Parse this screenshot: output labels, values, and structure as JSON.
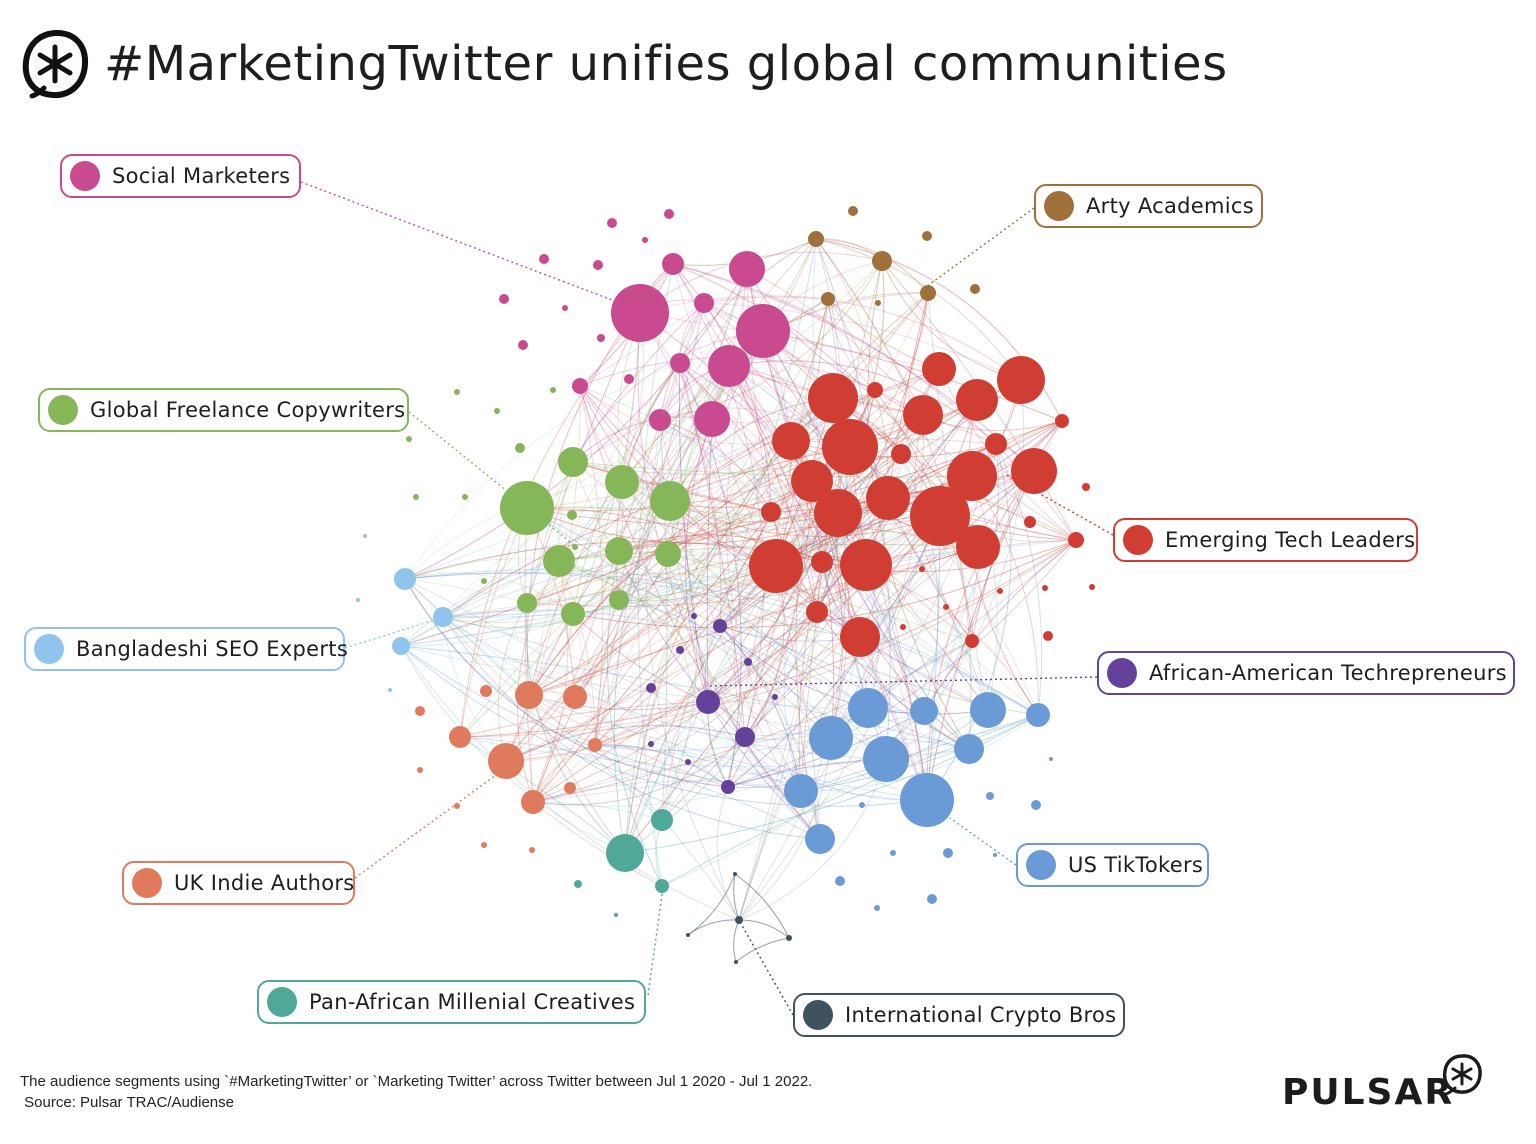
{
  "header": {
    "title": "#MarketingTwitter unifies global communities",
    "logo_icon": "asterisk-circle-icon"
  },
  "communities": [
    {
      "id": "social",
      "name": "Social Marketers",
      "color": "#c94a8e"
    },
    {
      "id": "arty",
      "name": "Arty Academics",
      "color": "#a0703a"
    },
    {
      "id": "freelance",
      "name": "Global Freelance Copywriters",
      "color": "#85b758"
    },
    {
      "id": "tech",
      "name": "Emerging Tech Leaders",
      "color": "#d03d33"
    },
    {
      "id": "seo",
      "name": "Bangladeshi SEO Experts",
      "color": "#8fc4ec"
    },
    {
      "id": "afam",
      "name": "African-American Techrepreneurs",
      "color": "#64419a"
    },
    {
      "id": "uk",
      "name": "UK Indie Authors",
      "color": "#e07a5c"
    },
    {
      "id": "us",
      "name": "US TikTokers",
      "color": "#6b9bd6"
    },
    {
      "id": "panaf",
      "name": "Pan-African Millenial Creatives",
      "color": "#4fa898"
    },
    {
      "id": "crypto",
      "name": "International Crypto Bros",
      "color": "#3e5260"
    }
  ],
  "footer": {
    "note": "The audience segments using `#MarketingTwitter’ or `Marketing Twitter’ across Twitter between Jul 1 2020 - Jul 1 2022.",
    "source": " Source: Pulsar TRAC/Audiense"
  },
  "brand": {
    "name": "PULSAR",
    "icon": "asterisk-circle-icon"
  }
}
